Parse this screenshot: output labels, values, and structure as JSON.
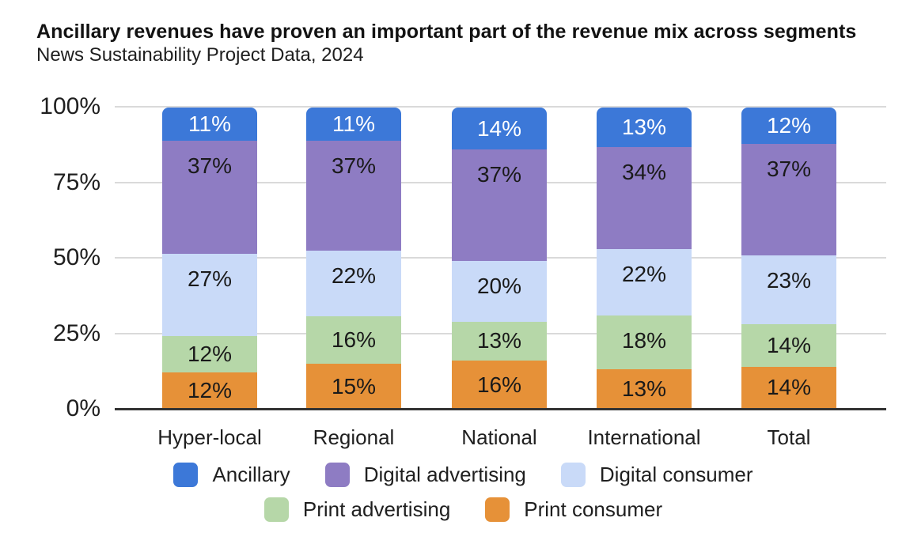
{
  "title": "Ancillary revenues have proven an important part of the revenue mix across segments",
  "subtitle": "News Sustainability Project Data, 2024",
  "chart_data": {
    "type": "bar",
    "variant": "stacked-100",
    "title": "Ancillary revenues have proven an important part of the revenue mix across segments",
    "subtitle": "News Sustainability Project Data, 2024",
    "categories": [
      "Hyper-local",
      "Regional",
      "National",
      "International",
      "Total"
    ],
    "series": [
      {
        "name": "Ancillary",
        "color": "#3C78D8",
        "label_color": "#FFFFFF",
        "values": [
          11,
          11,
          14,
          13,
          12
        ]
      },
      {
        "name": "Digital advertising",
        "color": "#8E7CC3",
        "label_color": "#1A1A1A",
        "values": [
          37,
          37,
          37,
          34,
          37
        ]
      },
      {
        "name": "Digital consumer",
        "color": "#C9DAF8",
        "label_color": "#1A1A1A",
        "values": [
          27,
          22,
          20,
          22,
          23
        ]
      },
      {
        "name": "Print advertising",
        "color": "#B6D7A8",
        "label_color": "#1A1A1A",
        "values": [
          12,
          16,
          13,
          18,
          14
        ]
      },
      {
        "name": "Print consumer",
        "color": "#E69138",
        "label_color": "#1A1A1A",
        "values": [
          12,
          15,
          16,
          13,
          14
        ]
      }
    ],
    "stack_order_top_to_bottom": [
      "Ancillary",
      "Digital advertising",
      "Digital consumer",
      "Print advertising",
      "Print consumer"
    ],
    "value_suffix": "%",
    "xlabel": "",
    "ylabel": "",
    "y_axis": {
      "min": 0,
      "max": 100,
      "tick_values": [
        0,
        25,
        50,
        75,
        100
      ],
      "tick_labels": [
        "0%",
        "25%",
        "50%",
        "75%",
        "100%"
      ]
    },
    "grid": true,
    "grid_color": "#DADADA",
    "baseline_color": "#333333",
    "legend": {
      "position": "bottom",
      "rows": [
        [
          "Ancillary",
          "Digital advertising",
          "Digital consumer"
        ],
        [
          "Print advertising",
          "Print consumer"
        ]
      ]
    }
  }
}
